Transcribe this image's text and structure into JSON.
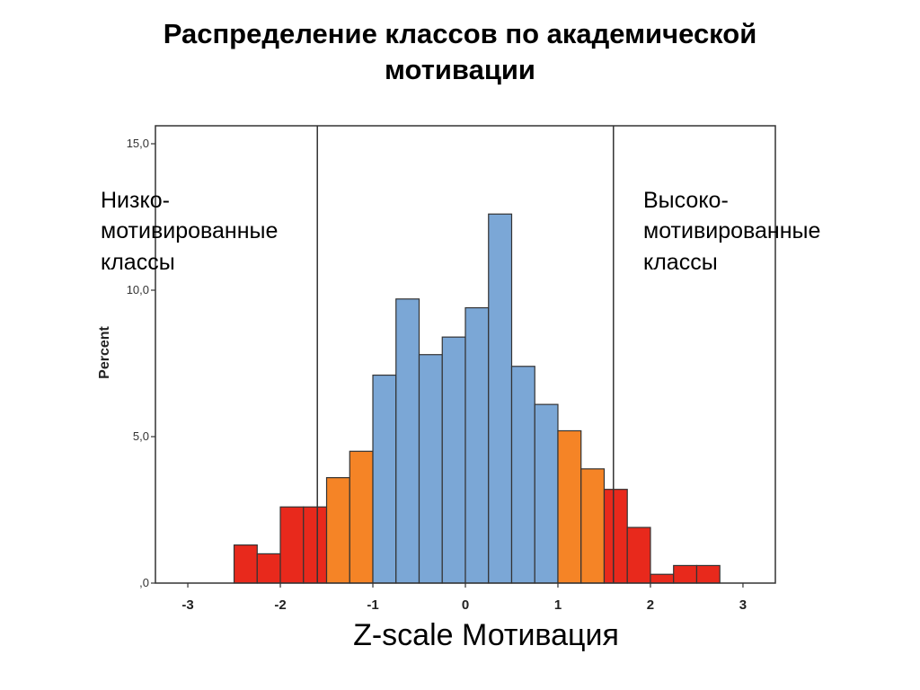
{
  "title_lines": [
    "Распределение классов по академической",
    "мотивации"
  ],
  "annotations": {
    "low": [
      "Низко-",
      "мотивированные",
      "классы"
    ],
    "high": [
      "Высоко-",
      "мотивированные",
      "классы"
    ]
  },
  "colors": {
    "low": "#e8291c",
    "mid_low": "#f58426",
    "center": "#7ba7d6",
    "mid_high": "#f58426",
    "high": "#e8291c",
    "bar_stroke": "#333333",
    "threshold_line": "#333333"
  },
  "chart_data": {
    "type": "bar",
    "title": "",
    "xlabel": "Z-scale Мотивация",
    "ylabel": "Percent",
    "xlim": [
      -3.35,
      3.35
    ],
    "ylim": [
      0,
      15
    ],
    "grid": false,
    "y_ticks": [
      {
        "value": 0,
        "label": ",0"
      },
      {
        "value": 5,
        "label": "5,0"
      },
      {
        "value": 10,
        "label": "10,0"
      },
      {
        "value": 15,
        "label": "15,0"
      }
    ],
    "x_ticks": [
      {
        "value": -3,
        "label": "-3"
      },
      {
        "value": -2,
        "label": "-2"
      },
      {
        "value": -1,
        "label": "-1"
      },
      {
        "value": 0,
        "label": "0"
      },
      {
        "value": 1,
        "label": "1"
      },
      {
        "value": 2,
        "label": "2"
      },
      {
        "value": 3,
        "label": "3"
      }
    ],
    "thresholds": [
      -1.6,
      1.6
    ],
    "bins": [
      {
        "x0": -2.5,
        "x1": -2.25,
        "value": 1.3,
        "group": "low"
      },
      {
        "x0": -2.25,
        "x1": -2.0,
        "value": 1.0,
        "group": "low"
      },
      {
        "x0": -2.0,
        "x1": -1.75,
        "value": 2.6,
        "group": "low"
      },
      {
        "x0": -1.75,
        "x1": -1.5,
        "value": 2.6,
        "group": "low"
      },
      {
        "x0": -1.5,
        "x1": -1.25,
        "value": 3.6,
        "group": "mid_low"
      },
      {
        "x0": -1.25,
        "x1": -1.0,
        "value": 4.5,
        "group": "mid_low"
      },
      {
        "x0": -1.0,
        "x1": -0.75,
        "value": 7.1,
        "group": "center"
      },
      {
        "x0": -0.75,
        "x1": -0.5,
        "value": 9.7,
        "group": "center"
      },
      {
        "x0": -0.5,
        "x1": -0.25,
        "value": 7.8,
        "group": "center"
      },
      {
        "x0": -0.25,
        "x1": 0.0,
        "value": 8.4,
        "group": "center"
      },
      {
        "x0": 0.0,
        "x1": 0.25,
        "value": 9.4,
        "group": "center"
      },
      {
        "x0": 0.25,
        "x1": 0.5,
        "value": 12.6,
        "group": "center"
      },
      {
        "x0": 0.5,
        "x1": 0.75,
        "value": 7.4,
        "group": "center"
      },
      {
        "x0": 0.75,
        "x1": 1.0,
        "value": 6.1,
        "group": "center"
      },
      {
        "x0": 1.0,
        "x1": 1.25,
        "value": 5.2,
        "group": "mid_high"
      },
      {
        "x0": 1.25,
        "x1": 1.5,
        "value": 3.9,
        "group": "mid_high"
      },
      {
        "x0": 1.5,
        "x1": 1.75,
        "value": 3.2,
        "group": "high"
      },
      {
        "x0": 1.75,
        "x1": 2.0,
        "value": 1.9,
        "group": "high"
      },
      {
        "x0": 2.0,
        "x1": 2.25,
        "value": 0.3,
        "group": "high"
      },
      {
        "x0": 2.25,
        "x1": 2.5,
        "value": 0.6,
        "group": "high"
      },
      {
        "x0": 2.5,
        "x1": 2.75,
        "value": 0.6,
        "group": "high"
      }
    ]
  }
}
